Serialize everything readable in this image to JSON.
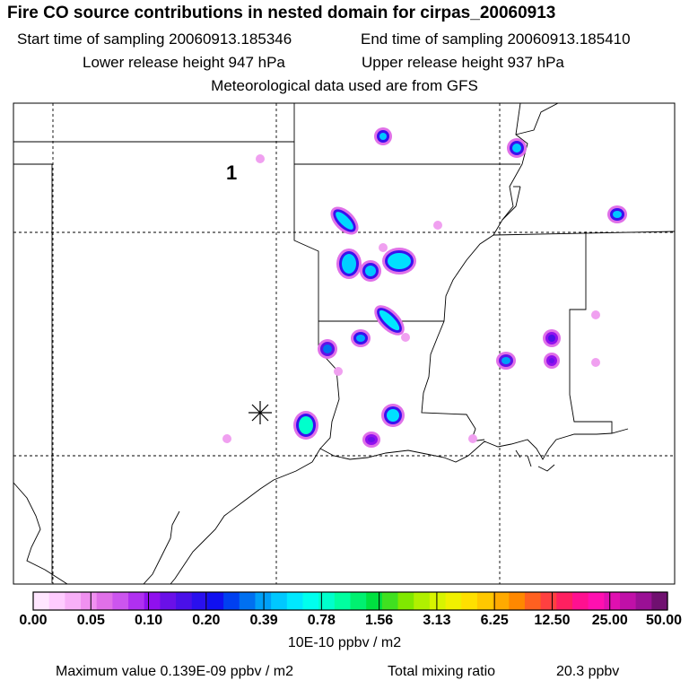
{
  "header": {
    "title": "Fire CO source contributions in nested domain for cirpas_20060913",
    "start_time": "Start time of sampling 20060913.185346",
    "end_time": "End time of sampling 20060913.185410",
    "lower_height": "Lower release height  947 hPa",
    "upper_height": "Upper release height  937 hPa",
    "met_data": "Meteorological data used are from GFS"
  },
  "map": {
    "marker_label": "1",
    "release_marker_icon": "asterisk-icon"
  },
  "colorbar": {
    "ticks": [
      "0.00",
      "0.05",
      "0.10",
      "0.20",
      "0.39",
      "0.78",
      "1.56",
      "3.13",
      "6.25",
      "12.50",
      "25.00",
      "50.00"
    ],
    "units": "10E-10 ppbv / m2",
    "colors": [
      "#ffe6ff",
      "#ffccff",
      "#f8b0f8",
      "#f090f0",
      "#e070e8",
      "#cc55ee",
      "#b030f0",
      "#9010ee",
      "#6a10e8",
      "#4a10e8",
      "#2a10ee",
      "#1010f0",
      "#0040f0",
      "#0070f0",
      "#00a0f8",
      "#00c8ff",
      "#00e8ff",
      "#00ffee",
      "#00ffcc",
      "#00ffa0",
      "#00f070",
      "#00e040",
      "#40e020",
      "#80e800",
      "#b0f000",
      "#d8f400",
      "#f0f000",
      "#ffe000",
      "#ffc800",
      "#ffaa00",
      "#ff8800",
      "#ff6020",
      "#ff4040",
      "#ff2060",
      "#ff1090",
      "#ff10b0",
      "#e010b0",
      "#c010a8",
      "#9a1095",
      "#701070"
    ]
  },
  "footer": {
    "max_value": "Maximum value  0.139E-09 ppbv / m2",
    "total_label": "Total mixing ratio",
    "total_value": "20.3 ppbv"
  }
}
